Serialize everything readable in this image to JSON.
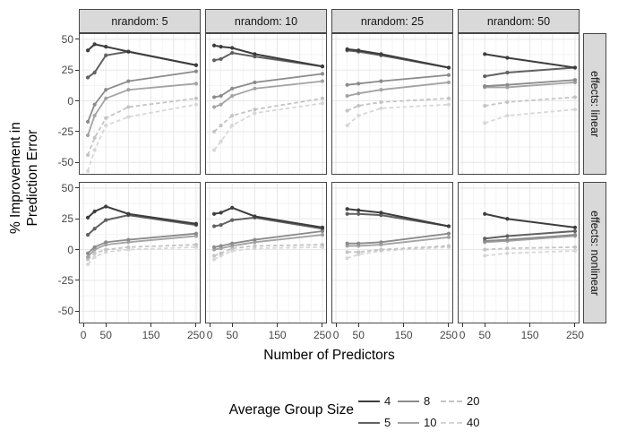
{
  "figure": {
    "y_axis_label_line1": "% Improvement in",
    "y_axis_label_line2": "Prediction Error",
    "x_axis_label": "Number of Predictors",
    "y_ticks": [
      "50",
      "25",
      "0",
      "-25",
      "-50"
    ],
    "x_ticks": [
      "0",
      "50",
      "150",
      "250"
    ],
    "legend": {
      "title": "Average Group Size",
      "entries": [
        {
          "label": "4",
          "color": "#3d3d3d",
          "dashed": false
        },
        {
          "label": "5",
          "color": "#616161",
          "dashed": false
        },
        {
          "label": "8",
          "color": "#8b8b8b",
          "dashed": false
        },
        {
          "label": "10",
          "color": "#a3a3a3",
          "dashed": false
        },
        {
          "label": "20",
          "color": "#c4c4c4",
          "dashed": true
        },
        {
          "label": "40",
          "color": "#d7d7d7",
          "dashed": true
        }
      ]
    }
  },
  "chart_data": {
    "type": "line",
    "title": "",
    "xlabel": "Number of Predictors",
    "ylabel": "% Improvement in Prediction Error",
    "legend_title": "Average Group Size",
    "legend_position": "bottom",
    "grid": true,
    "facet_cols": [
      "nrandom: 5",
      "nrandom: 10",
      "nrandom: 25",
      "nrandom: 50"
    ],
    "facet_rows": [
      "effects: linear",
      "effects: nonlinear"
    ],
    "xlim": [
      -10,
      260
    ],
    "ylim": [
      -60,
      55
    ],
    "x_tick_values": [
      0,
      50,
      150,
      250
    ],
    "y_tick_values": [
      50,
      25,
      0,
      -25,
      -50
    ],
    "panels": [
      {
        "row": "effects: linear",
        "col": "nrandom: 5",
        "x": [
          10,
          25,
          50,
          100,
          250
        ],
        "series": [
          {
            "name": "4",
            "values": [
              41,
              46,
              44,
              40,
              29
            ]
          },
          {
            "name": "5",
            "values": [
              19,
              23,
              37,
              40,
              29
            ]
          },
          {
            "name": "8",
            "values": [
              -17,
              -3,
              9,
              16,
              24
            ]
          },
          {
            "name": "10",
            "values": [
              -28,
              -12,
              2,
              9,
              14
            ]
          },
          {
            "name": "20",
            "values": [
              -44,
              -30,
              -14,
              -5,
              2
            ]
          },
          {
            "name": "40",
            "values": [
              -57,
              -40,
              -20,
              -13,
              -3
            ]
          }
        ]
      },
      {
        "row": "effects: linear",
        "col": "nrandom: 10",
        "x": [
          10,
          25,
          50,
          100,
          250
        ],
        "series": [
          {
            "name": "4",
            "values": [
              45,
              44,
              43,
              38,
              28
            ]
          },
          {
            "name": "5",
            "values": [
              33,
              34,
              39,
              36,
              28
            ]
          },
          {
            "name": "8",
            "values": [
              3,
              4,
              10,
              15,
              22
            ]
          },
          {
            "name": "10",
            "values": [
              -5,
              -3,
              4,
              10,
              16
            ]
          },
          {
            "name": "20",
            "values": [
              -25,
              -20,
              -12,
              -7,
              2
            ]
          },
          {
            "name": "40",
            "values": [
              -40,
              -33,
              -20,
              -10,
              -2
            ]
          }
        ]
      },
      {
        "row": "effects: linear",
        "col": "nrandom: 25",
        "x": [
          25,
          50,
          100,
          250
        ],
        "series": [
          {
            "name": "4",
            "values": [
              42,
              41,
              38,
              27
            ]
          },
          {
            "name": "5",
            "values": [
              41,
              40,
              37,
              27
            ]
          },
          {
            "name": "8",
            "values": [
              13,
              14,
              16,
              21
            ]
          },
          {
            "name": "10",
            "values": [
              4,
              6,
              9,
              15
            ]
          },
          {
            "name": "20",
            "values": [
              -8,
              -4,
              -1,
              2
            ]
          },
          {
            "name": "40",
            "values": [
              -20,
              -12,
              -6,
              -3
            ]
          }
        ]
      },
      {
        "row": "effects: linear",
        "col": "nrandom: 50",
        "x": [
          50,
          100,
          250
        ],
        "series": [
          {
            "name": "4",
            "values": [
              38,
              35,
              27
            ]
          },
          {
            "name": "5",
            "values": [
              20,
              23,
              27
            ]
          },
          {
            "name": "8",
            "values": [
              12,
              13,
              17
            ]
          },
          {
            "name": "10",
            "values": [
              11,
              11,
              15
            ]
          },
          {
            "name": "20",
            "values": [
              -4,
              -1,
              3
            ]
          },
          {
            "name": "40",
            "values": [
              -18,
              -12,
              -7
            ]
          }
        ]
      },
      {
        "row": "effects: nonlinear",
        "col": "nrandom: 5",
        "x": [
          10,
          25,
          50,
          100,
          250
        ],
        "series": [
          {
            "name": "4",
            "values": [
              26,
              31,
              35,
              29,
              21
            ]
          },
          {
            "name": "5",
            "values": [
              12,
              17,
              24,
              28,
              20
            ]
          },
          {
            "name": "8",
            "values": [
              -3,
              2,
              6,
              8,
              13
            ]
          },
          {
            "name": "10",
            "values": [
              -6,
              0,
              4,
              6,
              11
            ]
          },
          {
            "name": "20",
            "values": [
              -8,
              -3,
              0,
              2,
              4
            ]
          },
          {
            "name": "40",
            "values": [
              -12,
              -6,
              -2,
              0,
              2
            ]
          }
        ]
      },
      {
        "row": "effects: nonlinear",
        "col": "nrandom: 10",
        "x": [
          10,
          25,
          50,
          100,
          250
        ],
        "series": [
          {
            "name": "4",
            "values": [
              29,
              30,
              34,
              27,
              18
            ]
          },
          {
            "name": "5",
            "values": [
              19,
              20,
              24,
              26,
              17
            ]
          },
          {
            "name": "8",
            "values": [
              2,
              3,
              5,
              8,
              15
            ]
          },
          {
            "name": "10",
            "values": [
              0,
              1,
              3,
              6,
              12
            ]
          },
          {
            "name": "20",
            "values": [
              -5,
              -3,
              1,
              3,
              4
            ]
          },
          {
            "name": "40",
            "values": [
              -8,
              -5,
              -1,
              1,
              2
            ]
          }
        ]
      },
      {
        "row": "effects: nonlinear",
        "col": "nrandom: 25",
        "x": [
          25,
          50,
          100,
          250
        ],
        "series": [
          {
            "name": "4",
            "values": [
              33,
              32,
              30,
              19
            ]
          },
          {
            "name": "5",
            "values": [
              29,
              29,
              28,
              19
            ]
          },
          {
            "name": "8",
            "values": [
              5,
              5,
              6,
              13
            ]
          },
          {
            "name": "10",
            "values": [
              3,
              3,
              4,
              10
            ]
          },
          {
            "name": "20",
            "values": [
              -2,
              -2,
              0,
              3
            ]
          },
          {
            "name": "40",
            "values": [
              -7,
              -4,
              -1,
              2
            ]
          }
        ]
      },
      {
        "row": "effects: nonlinear",
        "col": "nrandom: 50",
        "x": [
          50,
          100,
          250
        ],
        "series": [
          {
            "name": "4",
            "values": [
              29,
              25,
              18
            ]
          },
          {
            "name": "5",
            "values": [
              9,
              11,
              15
            ]
          },
          {
            "name": "8",
            "values": [
              7,
              8,
              12
            ]
          },
          {
            "name": "10",
            "values": [
              6,
              7,
              11
            ]
          },
          {
            "name": "20",
            "values": [
              0,
              1,
              2
            ]
          },
          {
            "name": "40",
            "values": [
              -5,
              -3,
              -1
            ]
          }
        ]
      }
    ]
  }
}
